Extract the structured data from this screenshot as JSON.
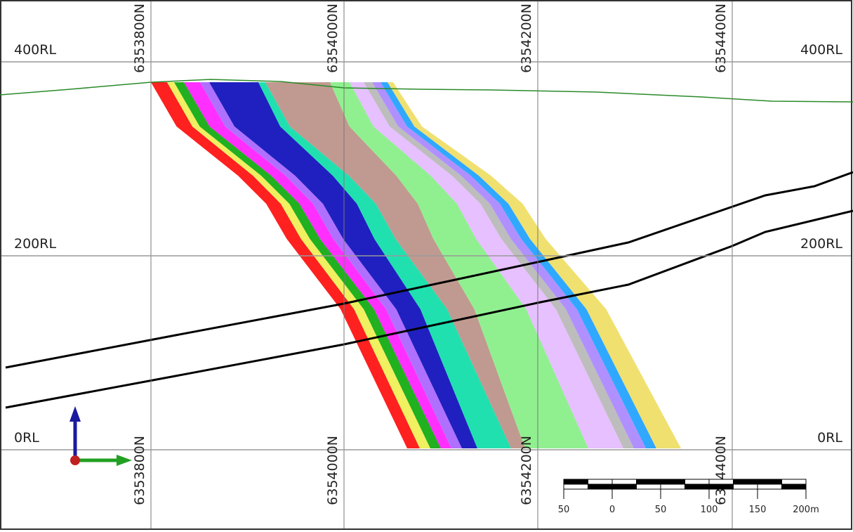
{
  "grid": {
    "northings": {
      "top": [
        "6353800N",
        "6354000N",
        "6354200N",
        "6354400N"
      ],
      "bottom": [
        "6353800N",
        "6354000N",
        "6354200N",
        "6354400N"
      ]
    },
    "levels": {
      "left": [
        "400RL",
        "200RL",
        "0RL"
      ],
      "right": [
        "400RL",
        "200RL",
        "0RL"
      ]
    }
  },
  "scale_bar": {
    "labels": [
      "50",
      "0",
      "50",
      "100",
      "150",
      "200m"
    ]
  }
}
